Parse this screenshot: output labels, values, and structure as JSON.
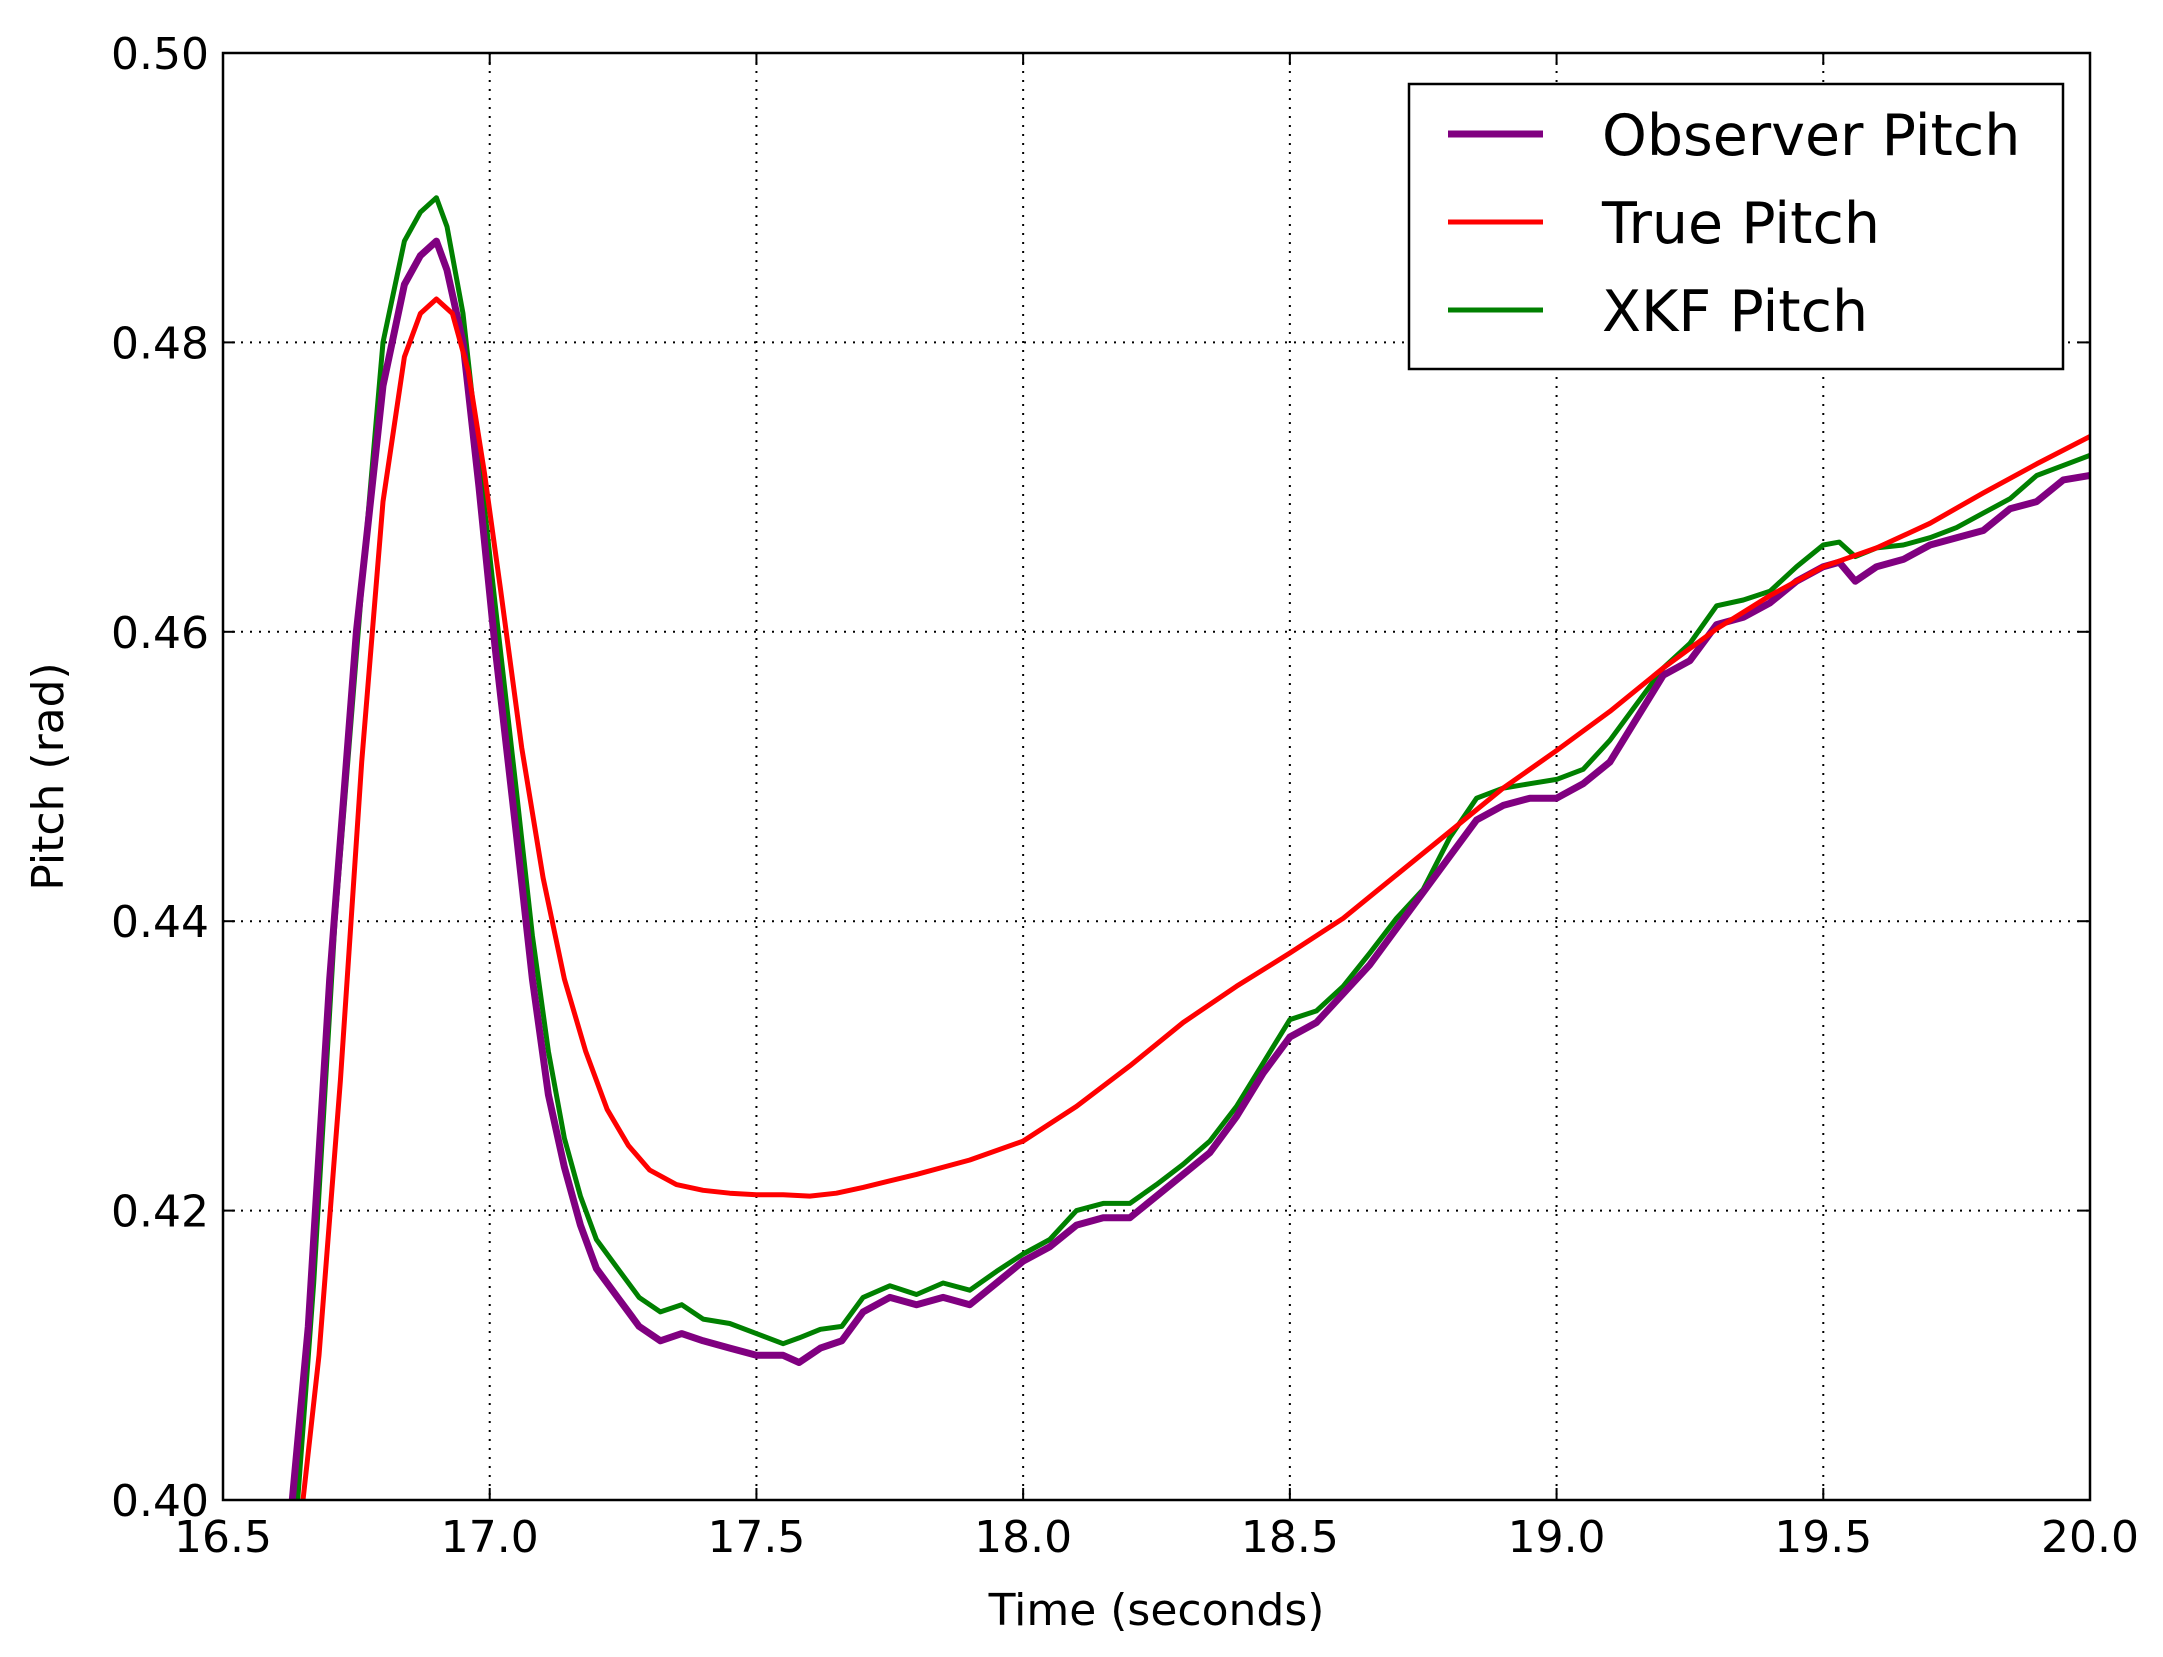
{
  "chart_data": {
    "type": "line",
    "title": "",
    "xlabel": "Time (seconds)",
    "ylabel": "Pitch (rad)",
    "xlim": [
      16.5,
      20.0
    ],
    "ylim": [
      0.4,
      0.5
    ],
    "xticks": [
      "16.5",
      "17.0",
      "17.5",
      "18.0",
      "18.5",
      "19.0",
      "19.5",
      "20.0"
    ],
    "yticks": [
      "0.40",
      "0.42",
      "0.44",
      "0.46",
      "0.48",
      "0.50"
    ],
    "grid": true,
    "legend_position": "top-right",
    "series": [
      {
        "name": "Observer Pitch",
        "color": "#800080",
        "x": [
          16.63,
          16.66,
          16.7,
          16.75,
          16.8,
          16.84,
          16.87,
          16.9,
          16.92,
          16.95,
          16.98,
          17.01,
          17.05,
          17.08,
          17.11,
          17.14,
          17.17,
          17.2,
          17.24,
          17.28,
          17.32,
          17.36,
          17.4,
          17.45,
          17.5,
          17.55,
          17.58,
          17.62,
          17.66,
          17.7,
          17.75,
          17.8,
          17.85,
          17.9,
          17.95,
          18.0,
          18.05,
          18.1,
          18.15,
          18.2,
          18.25,
          18.3,
          18.35,
          18.4,
          18.45,
          18.5,
          18.55,
          18.6,
          18.65,
          18.7,
          18.75,
          18.8,
          18.85,
          18.9,
          18.95,
          19.0,
          19.05,
          19.1,
          19.15,
          19.2,
          19.25,
          19.3,
          19.35,
          19.4,
          19.45,
          19.5,
          19.53,
          19.56,
          19.6,
          19.65,
          19.7,
          19.75,
          19.8,
          19.85,
          19.9,
          19.95,
          20.0
        ],
        "y": [
          0.4,
          0.412,
          0.436,
          0.46,
          0.477,
          0.484,
          0.486,
          0.487,
          0.485,
          0.48,
          0.47,
          0.459,
          0.446,
          0.436,
          0.428,
          0.423,
          0.419,
          0.416,
          0.414,
          0.412,
          0.411,
          0.4115,
          0.411,
          0.4105,
          0.41,
          0.41,
          0.4095,
          0.4105,
          0.411,
          0.413,
          0.414,
          0.4135,
          0.414,
          0.4135,
          0.415,
          0.4165,
          0.4175,
          0.419,
          0.4195,
          0.4195,
          0.421,
          0.4225,
          0.424,
          0.4265,
          0.4295,
          0.432,
          0.433,
          0.435,
          0.437,
          0.4395,
          0.442,
          0.4445,
          0.447,
          0.448,
          0.4485,
          0.4485,
          0.4495,
          0.451,
          0.454,
          0.457,
          0.458,
          0.4605,
          0.461,
          0.462,
          0.4635,
          0.4645,
          0.4648,
          0.4635,
          0.4645,
          0.465,
          0.466,
          0.4665,
          0.467,
          0.4685,
          0.469,
          0.4705,
          0.4708
        ]
      },
      {
        "name": "True Pitch",
        "color": "#ff0000",
        "x": [
          16.65,
          16.68,
          16.72,
          16.76,
          16.8,
          16.84,
          16.87,
          16.9,
          16.93,
          16.96,
          16.99,
          17.02,
          17.06,
          17.1,
          17.14,
          17.18,
          17.22,
          17.26,
          17.3,
          17.35,
          17.4,
          17.45,
          17.5,
          17.55,
          17.6,
          17.65,
          17.7,
          17.8,
          17.9,
          18.0,
          18.1,
          18.2,
          18.3,
          18.4,
          18.5,
          18.6,
          18.7,
          18.8,
          18.9,
          19.0,
          19.1,
          19.2,
          19.3,
          19.4,
          19.5,
          19.6,
          19.7,
          19.8,
          19.9,
          20.0
        ],
        "y": [
          0.4,
          0.41,
          0.429,
          0.451,
          0.469,
          0.479,
          0.482,
          0.483,
          0.482,
          0.478,
          0.471,
          0.463,
          0.452,
          0.443,
          0.436,
          0.431,
          0.427,
          0.4245,
          0.4228,
          0.4218,
          0.4214,
          0.4212,
          0.4211,
          0.4211,
          0.421,
          0.4212,
          0.4216,
          0.4225,
          0.4235,
          0.4248,
          0.4272,
          0.43,
          0.433,
          0.4355,
          0.4378,
          0.4402,
          0.4432,
          0.4462,
          0.4492,
          0.4518,
          0.4545,
          0.4575,
          0.4602,
          0.4625,
          0.4645,
          0.4658,
          0.4675,
          0.4696,
          0.4716,
          0.4735
        ]
      },
      {
        "name": "XKF Pitch",
        "color": "#008000",
        "x": [
          16.64,
          16.67,
          16.71,
          16.76,
          16.8,
          16.84,
          16.87,
          16.9,
          16.92,
          16.95,
          16.98,
          17.01,
          17.05,
          17.08,
          17.11,
          17.14,
          17.17,
          17.2,
          17.24,
          17.28,
          17.32,
          17.36,
          17.4,
          17.45,
          17.5,
          17.55,
          17.58,
          17.62,
          17.66,
          17.7,
          17.75,
          17.8,
          17.85,
          17.9,
          17.95,
          18.0,
          18.05,
          18.1,
          18.15,
          18.2,
          18.25,
          18.3,
          18.35,
          18.4,
          18.45,
          18.5,
          18.55,
          18.6,
          18.65,
          18.7,
          18.75,
          18.8,
          18.85,
          18.9,
          18.95,
          19.0,
          19.05,
          19.1,
          19.15,
          19.2,
          19.25,
          19.3,
          19.35,
          19.4,
          19.45,
          19.5,
          19.53,
          19.56,
          19.6,
          19.65,
          19.7,
          19.75,
          19.8,
          19.85,
          19.9,
          19.95,
          20.0
        ],
        "y": [
          0.4,
          0.415,
          0.44,
          0.463,
          0.48,
          0.487,
          0.489,
          0.49,
          0.488,
          0.482,
          0.472,
          0.462,
          0.449,
          0.439,
          0.431,
          0.425,
          0.421,
          0.418,
          0.416,
          0.414,
          0.413,
          0.4135,
          0.4125,
          0.4122,
          0.4115,
          0.4108,
          0.4112,
          0.4118,
          0.412,
          0.414,
          0.4148,
          0.4142,
          0.415,
          0.4145,
          0.4158,
          0.417,
          0.418,
          0.42,
          0.4205,
          0.4205,
          0.4218,
          0.4232,
          0.4248,
          0.4272,
          0.4302,
          0.4332,
          0.4338,
          0.4355,
          0.4378,
          0.4402,
          0.4422,
          0.4458,
          0.4485,
          0.4492,
          0.4495,
          0.4498,
          0.4505,
          0.4525,
          0.455,
          0.4575,
          0.4592,
          0.4618,
          0.4622,
          0.4628,
          0.4645,
          0.466,
          0.4662,
          0.4652,
          0.4658,
          0.466,
          0.4665,
          0.4672,
          0.4682,
          0.4692,
          0.4708,
          0.4715,
          0.4722
        ]
      }
    ]
  }
}
